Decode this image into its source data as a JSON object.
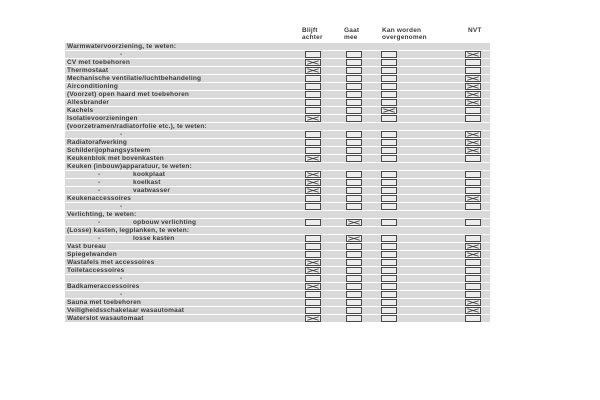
{
  "document": {
    "kind": "inventory-checklist-scan",
    "colors": {
      "row_band": "#d9d9d9",
      "text": "#3d3d3d",
      "box_border": "#4a4a4a",
      "box_fill": "#ececec",
      "check_mark": "#3c3c3c"
    },
    "columns": [
      {
        "key": "blijft-achter",
        "line1": "Blijft",
        "line2": "achter"
      },
      {
        "key": "gaat-mee",
        "line1": "Gaat",
        "line2": "mee"
      },
      {
        "key": "kan-worden-overgenomen",
        "line1": "Kan worden",
        "line2": "overgenomen"
      },
      {
        "key": "nvt",
        "line1": "NVT",
        "line2": ""
      }
    ],
    "dash_glyph": "-",
    "rows": [
      {
        "type": "section",
        "label": "Warmwatervoorziening, te weten:",
        "checks": null
      },
      {
        "type": "dash",
        "label": "-",
        "checks": [
          false,
          false,
          false,
          true
        ]
      },
      {
        "type": "item",
        "label": "CV met toebehoren",
        "checks": [
          true,
          false,
          false,
          false
        ]
      },
      {
        "type": "item",
        "label": "Thermostaat",
        "checks": [
          true,
          false,
          false,
          false
        ]
      },
      {
        "type": "item",
        "label": "Mechanische ventilatie/luchtbehandeling",
        "checks": [
          false,
          false,
          false,
          true
        ]
      },
      {
        "type": "item",
        "label": "Airconditioning",
        "checks": [
          false,
          false,
          false,
          true
        ]
      },
      {
        "type": "item",
        "label": "(Voorzet) open haard met toebehoren",
        "checks": [
          false,
          false,
          false,
          true
        ]
      },
      {
        "type": "item",
        "label": "Allesbrander",
        "checks": [
          false,
          false,
          false,
          true
        ]
      },
      {
        "type": "item",
        "label": "Kachels",
        "checks": [
          false,
          false,
          true,
          false
        ]
      },
      {
        "type": "item",
        "label": "Isolatievoorzieningen",
        "checks": [
          true,
          false,
          false,
          false
        ]
      },
      {
        "type": "section",
        "label": "(voorzetramen/radiatorfolie etc.), te weten:",
        "checks": null
      },
      {
        "type": "dash",
        "label": "-",
        "checks": [
          false,
          false,
          false,
          true
        ]
      },
      {
        "type": "item",
        "label": "Radiatorafwerking",
        "checks": [
          false,
          false,
          false,
          true
        ]
      },
      {
        "type": "item",
        "label": "Schilderijophangsysteem",
        "checks": [
          false,
          false,
          false,
          true
        ]
      },
      {
        "type": "item",
        "label": "Keukenblok met bovenkasten",
        "checks": [
          true,
          false,
          false,
          false
        ]
      },
      {
        "type": "section",
        "label": "Keuken (inbouw)apparatuur, te weten:",
        "checks": null
      },
      {
        "type": "subitem",
        "label": "kookplaat",
        "checks": [
          true,
          false,
          false,
          false
        ]
      },
      {
        "type": "subitem",
        "label": "koelkast",
        "checks": [
          true,
          false,
          false,
          false
        ]
      },
      {
        "type": "subitem",
        "label": "vaatwasser",
        "checks": [
          true,
          false,
          false,
          false
        ]
      },
      {
        "type": "item",
        "label": "Keukenaccessoires",
        "checks": [
          false,
          false,
          false,
          true
        ]
      },
      {
        "type": "dash",
        "label": "-",
        "checks": [
          false,
          false,
          false,
          false
        ]
      },
      {
        "type": "section",
        "label": "Verlichting, te weten:",
        "checks": null
      },
      {
        "type": "subitem",
        "label": "opbouw verlichting",
        "checks": [
          false,
          true,
          false,
          false
        ]
      },
      {
        "type": "section",
        "label": "(Losse) kasten, legplanken, te weten:",
        "checks": null
      },
      {
        "type": "subitem",
        "label": "losse kasten",
        "checks": [
          false,
          true,
          false,
          false
        ]
      },
      {
        "type": "item",
        "label": "Vast bureau",
        "checks": [
          false,
          false,
          false,
          true
        ]
      },
      {
        "type": "item",
        "label": "Spiegelwanden",
        "checks": [
          false,
          false,
          false,
          true
        ]
      },
      {
        "type": "item",
        "label": "Wastafels met accessoires",
        "checks": [
          true,
          false,
          false,
          false
        ]
      },
      {
        "type": "item",
        "label": "Toiletaccessoires",
        "checks": [
          true,
          false,
          false,
          false
        ]
      },
      {
        "type": "dash",
        "label": "-",
        "checks": [
          false,
          false,
          false,
          false
        ]
      },
      {
        "type": "item",
        "label": "Badkameraccessoires",
        "checks": [
          true,
          false,
          false,
          false
        ]
      },
      {
        "type": "dash",
        "label": "-",
        "checks": [
          false,
          false,
          false,
          false
        ]
      },
      {
        "type": "item",
        "label": "Sauna met toebehoren",
        "checks": [
          false,
          false,
          false,
          true
        ]
      },
      {
        "type": "item",
        "label": "Veiligheidsschakelaar wasautomaat",
        "checks": [
          false,
          false,
          false,
          true
        ]
      },
      {
        "type": "item",
        "label": "Waterslot wasautomaat",
        "checks": [
          true,
          false,
          false,
          false
        ]
      }
    ]
  }
}
